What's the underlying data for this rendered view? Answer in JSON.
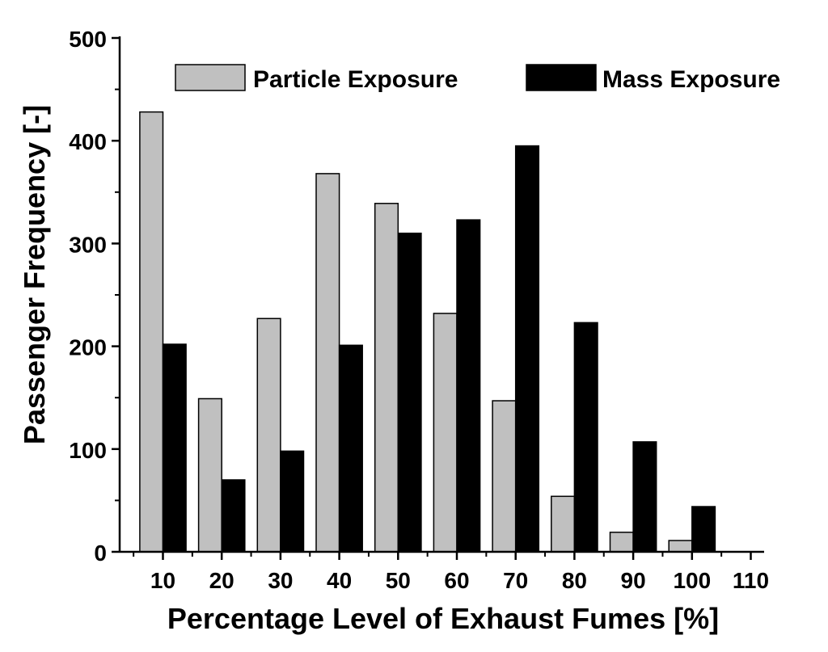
{
  "chart_data": {
    "type": "bar",
    "categories": [
      "10",
      "20",
      "30",
      "40",
      "50",
      "60",
      "70",
      "80",
      "90",
      "100",
      "110"
    ],
    "series": [
      {
        "name": "Particle Exposure",
        "color": "#c0c0c0",
        "values": [
          428,
          149,
          227,
          368,
          339,
          232,
          147,
          54,
          19,
          11,
          0
        ]
      },
      {
        "name": "Mass Exposure",
        "color": "#000000",
        "values": [
          202,
          70,
          98,
          201,
          310,
          323,
          395,
          223,
          107,
          44,
          0
        ]
      }
    ],
    "title": "",
    "xlabel": "Percentage Level of Exhaust Fumes [%]",
    "ylabel": "Passenger Frequency [-]",
    "ylim": [
      0,
      500
    ],
    "yticks": [
      0,
      100,
      200,
      300,
      400,
      500
    ],
    "grid": false,
    "legend_position": "top"
  }
}
